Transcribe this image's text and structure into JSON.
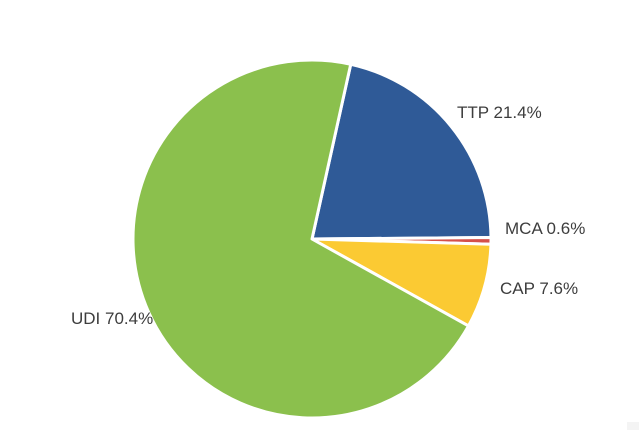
{
  "chart_data": {
    "type": "pie",
    "title": "",
    "legend": "none",
    "unit": "%",
    "direction": "clockwise",
    "start_angle_clockwise_from_top_deg": 12.5,
    "categories": [
      "TTP",
      "MCA",
      "CAP",
      "UDI"
    ],
    "values": [
      21.4,
      0.6,
      7.6,
      70.4
    ],
    "slices": [
      {
        "name": "TTP",
        "value": 21.4,
        "color": "#2F5A97",
        "label": "TTP 21.4%"
      },
      {
        "name": "MCA",
        "value": 0.6,
        "color": "#D5504B",
        "label": "MCA 0.6%"
      },
      {
        "name": "CAP",
        "value": 7.6,
        "color": "#FBCA33",
        "label": "CAP 7.6%"
      },
      {
        "name": "UDI",
        "value": 70.4,
        "color": "#8BC04D",
        "label": "UDI 70.4%"
      }
    ],
    "separator_color": "#FFFFFF",
    "label_text_color": "#3D3D3D",
    "background": "#FFFFFF"
  }
}
